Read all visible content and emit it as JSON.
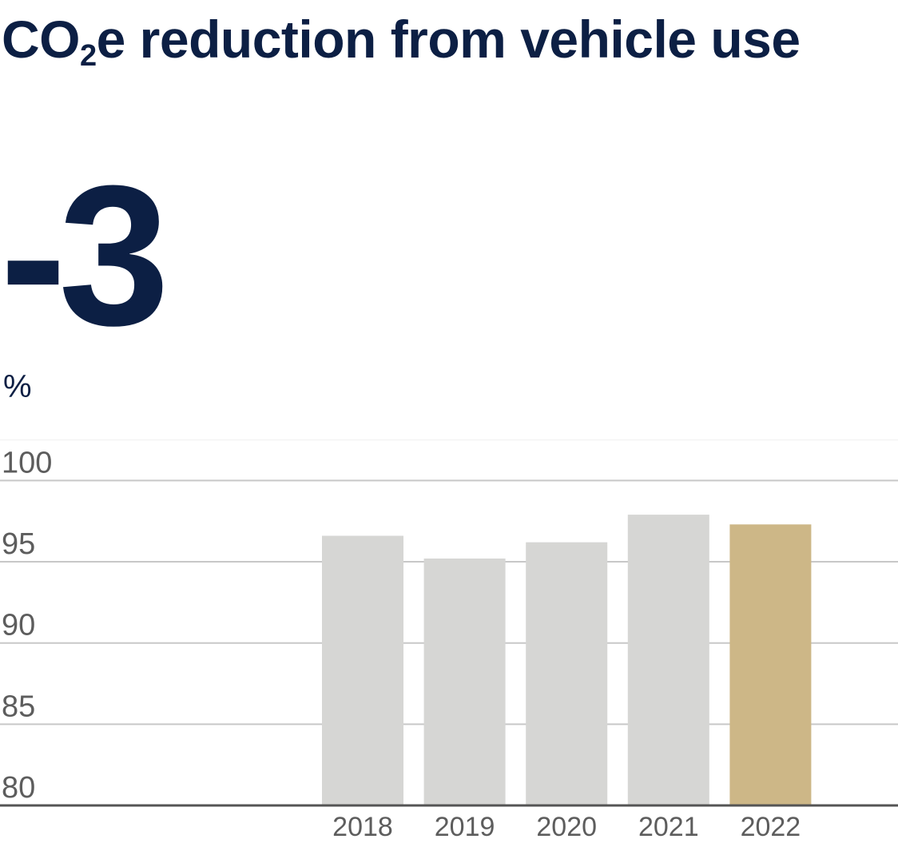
{
  "title_prefix": "CO",
  "title_sub": "2",
  "title_suffix": "e reduction from vehicle use",
  "kpi_value": "-3",
  "unit_label": "%",
  "colors": {
    "title": "#0c1f44",
    "bar": "#d6d6d4",
    "highlight": "#cdb787",
    "grid": "#c8c8c8",
    "axis": "#555555"
  },
  "chart_data": {
    "type": "bar",
    "categories": [
      "2018",
      "2019",
      "2020",
      "2021",
      "2022"
    ],
    "values": [
      96.6,
      95.2,
      96.2,
      97.9,
      97.3
    ],
    "highlight_category": "2022",
    "ylabel": "%",
    "ylim": [
      80,
      102.5
    ],
    "yticks": [
      "80",
      "85",
      "90",
      "95",
      "100"
    ],
    "grid": true
  }
}
